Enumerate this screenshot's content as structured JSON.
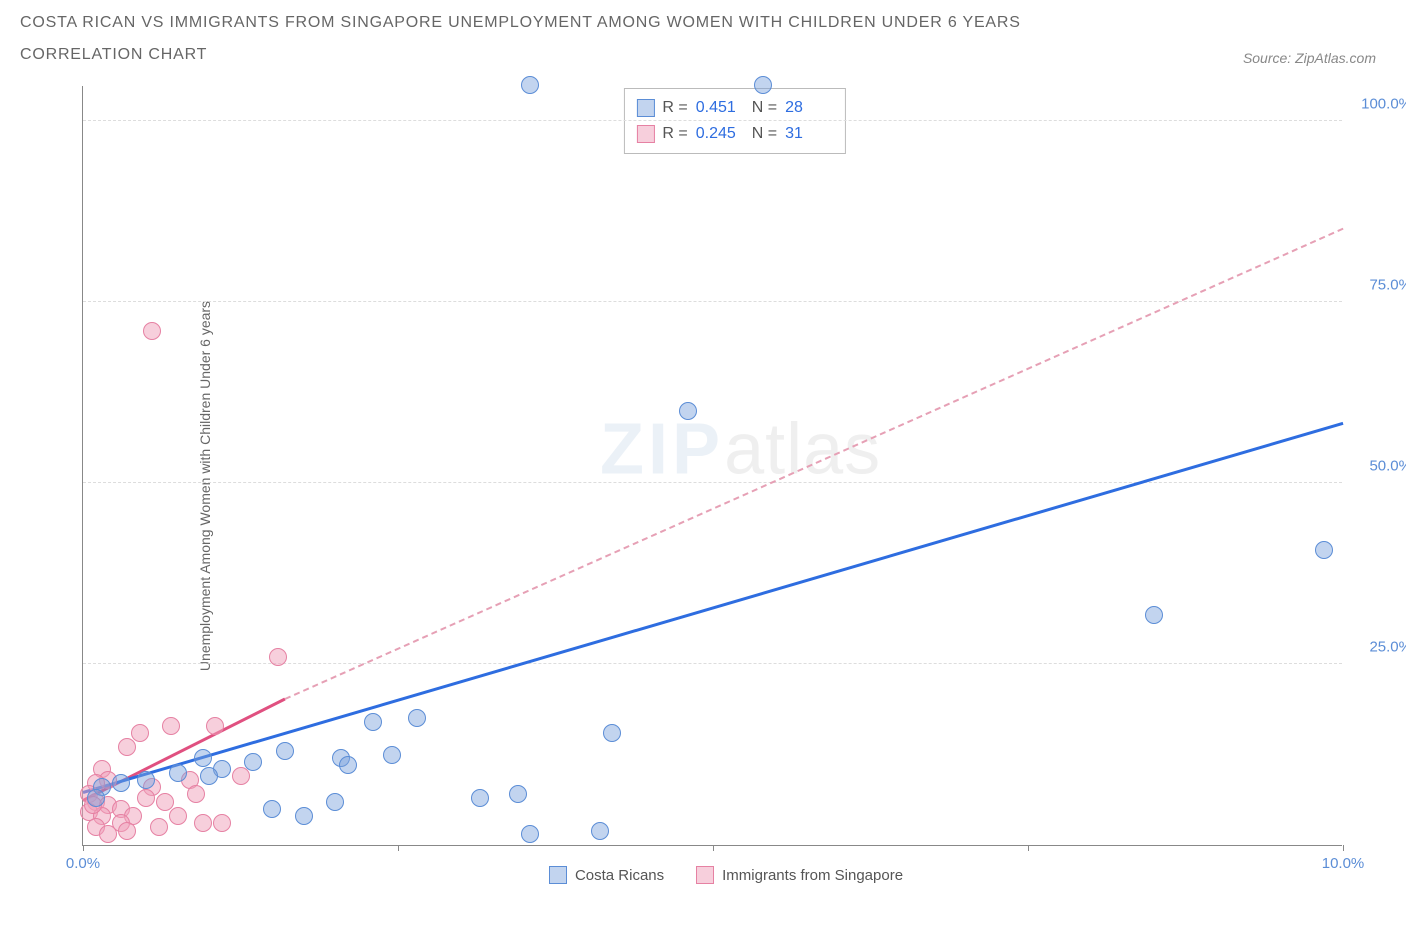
{
  "title_line1": "COSTA RICAN VS IMMIGRANTS FROM SINGAPORE UNEMPLOYMENT AMONG WOMEN WITH CHILDREN UNDER 6 YEARS",
  "title_line2": "CORRELATION CHART",
  "source_label": "Source: ZipAtlas.com",
  "y_axis_label": "Unemployment Among Women with Children Under 6 years",
  "watermark_zip": "ZIP",
  "watermark_atlas": "atlas",
  "chart": {
    "type": "scatter",
    "xlim": [
      0,
      10
    ],
    "ylim": [
      0,
      105
    ],
    "x_ticks": [
      0,
      2.5,
      5,
      7.5,
      10
    ],
    "x_tick_labels": {
      "0": "0.0%",
      "10": "10.0%"
    },
    "y_ticks": [
      25,
      50,
      75,
      100
    ],
    "y_tick_labels": {
      "25": "25.0%",
      "50": "50.0%",
      "75": "75.0%",
      "100": "100.0%"
    },
    "grid_color": "#dddddd",
    "axis_color": "#888888",
    "background_color": "#ffffff",
    "marker_radius": 9,
    "colors": {
      "series_a_fill": "rgba(120,160,220,0.45)",
      "series_a_stroke": "#5b8dd6",
      "series_b_fill": "rgba(240,160,185,0.5)",
      "series_b_stroke": "#e681a3",
      "trend_a": "#2e6de0",
      "trend_b": "#e05080",
      "trend_b_dash": "#e6a0b5",
      "tick_label": "#5b8dd6",
      "text": "#666666"
    },
    "info_box": {
      "rows": [
        {
          "swatch": "blue",
          "r_label": "R =",
          "r_value": "0.451",
          "n_label": "N =",
          "n_value": "28"
        },
        {
          "swatch": "pink",
          "r_label": "R =",
          "r_value": "0.245",
          "n_label": "N =",
          "n_value": "31"
        }
      ]
    },
    "bottom_legend": [
      {
        "swatch": "blue",
        "label": "Costa Ricans"
      },
      {
        "swatch": "pink",
        "label": "Immigrants from Singapore"
      }
    ],
    "series_a": {
      "name": "Costa Ricans",
      "trend_solid": {
        "x1": 0.0,
        "y1": 7,
        "x2": 10.0,
        "y2": 58
      },
      "trend_dash": null,
      "points": [
        {
          "x": 3.55,
          "y": 105
        },
        {
          "x": 5.4,
          "y": 105
        },
        {
          "x": 4.8,
          "y": 60
        },
        {
          "x": 9.85,
          "y": 40.8
        },
        {
          "x": 8.5,
          "y": 31.8
        },
        {
          "x": 2.3,
          "y": 17
        },
        {
          "x": 2.65,
          "y": 17.5
        },
        {
          "x": 2.45,
          "y": 12.5
        },
        {
          "x": 2.05,
          "y": 12
        },
        {
          "x": 1.6,
          "y": 13
        },
        {
          "x": 0.95,
          "y": 12
        },
        {
          "x": 1.35,
          "y": 11.5
        },
        {
          "x": 1.1,
          "y": 10.5
        },
        {
          "x": 1.0,
          "y": 9.5
        },
        {
          "x": 0.75,
          "y": 10
        },
        {
          "x": 0.5,
          "y": 9
        },
        {
          "x": 0.3,
          "y": 8.5
        },
        {
          "x": 0.15,
          "y": 8
        },
        {
          "x": 0.1,
          "y": 6.5
        },
        {
          "x": 4.2,
          "y": 15.5
        },
        {
          "x": 3.15,
          "y": 6.5
        },
        {
          "x": 3.45,
          "y": 7
        },
        {
          "x": 3.55,
          "y": 1.5
        },
        {
          "x": 4.1,
          "y": 2
        },
        {
          "x": 2.0,
          "y": 6
        },
        {
          "x": 1.5,
          "y": 5
        },
        {
          "x": 1.75,
          "y": 4
        },
        {
          "x": 2.1,
          "y": 11
        }
      ]
    },
    "series_b": {
      "name": "Immigrants from Singapore",
      "trend_solid": {
        "x1": 0.0,
        "y1": 6,
        "x2": 1.6,
        "y2": 20
      },
      "trend_dash": {
        "x1": 1.6,
        "y1": 20,
        "x2": 10.0,
        "y2": 85
      },
      "points": [
        {
          "x": 0.55,
          "y": 71
        },
        {
          "x": 1.55,
          "y": 26
        },
        {
          "x": 0.7,
          "y": 16.5
        },
        {
          "x": 1.05,
          "y": 16.5
        },
        {
          "x": 0.45,
          "y": 15.5
        },
        {
          "x": 0.35,
          "y": 13.5
        },
        {
          "x": 0.15,
          "y": 10.5
        },
        {
          "x": 0.2,
          "y": 9
        },
        {
          "x": 0.1,
          "y": 8.5
        },
        {
          "x": 0.05,
          "y": 7
        },
        {
          "x": 0.1,
          "y": 6
        },
        {
          "x": 0.2,
          "y": 5.5
        },
        {
          "x": 0.3,
          "y": 5
        },
        {
          "x": 0.05,
          "y": 4.5
        },
        {
          "x": 0.15,
          "y": 4
        },
        {
          "x": 0.4,
          "y": 4
        },
        {
          "x": 0.3,
          "y": 3
        },
        {
          "x": 0.1,
          "y": 2.5
        },
        {
          "x": 0.55,
          "y": 8
        },
        {
          "x": 0.5,
          "y": 6.5
        },
        {
          "x": 0.65,
          "y": 6
        },
        {
          "x": 0.85,
          "y": 9
        },
        {
          "x": 0.75,
          "y": 4
        },
        {
          "x": 0.95,
          "y": 3
        },
        {
          "x": 1.1,
          "y": 3
        },
        {
          "x": 1.25,
          "y": 9.5
        },
        {
          "x": 0.35,
          "y": 2
        },
        {
          "x": 0.2,
          "y": 1.5
        },
        {
          "x": 0.6,
          "y": 2.5
        },
        {
          "x": 0.08,
          "y": 5.5
        },
        {
          "x": 0.9,
          "y": 7
        }
      ]
    }
  }
}
